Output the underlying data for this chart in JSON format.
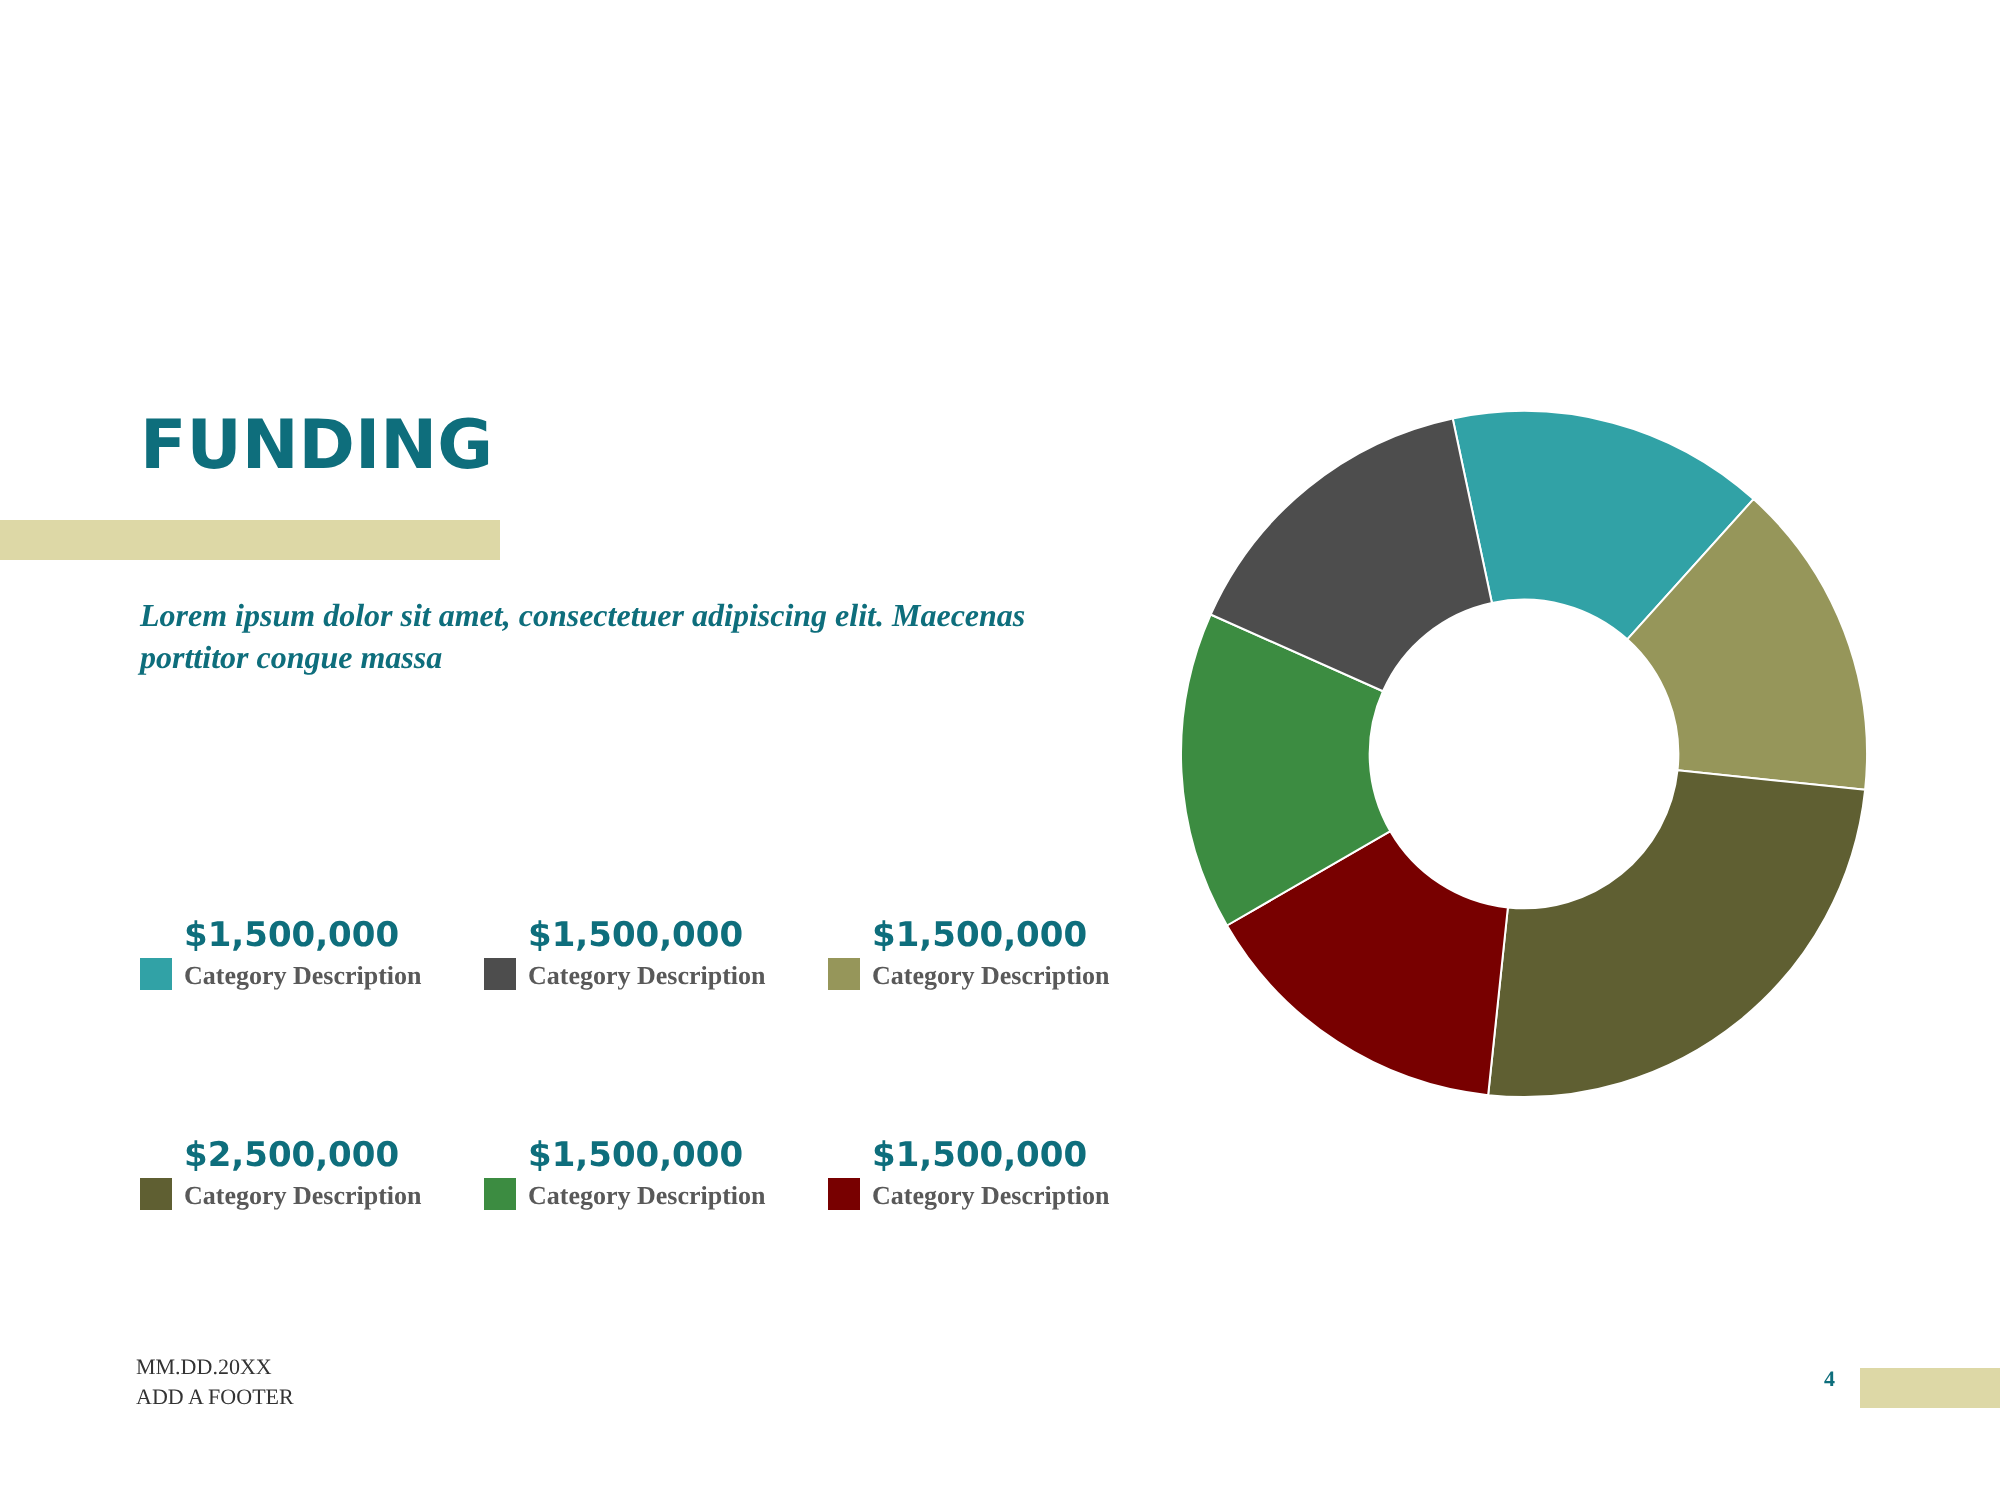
{
  "chart_data": {
    "type": "donut",
    "title": "FUNDING",
    "subtitle": "Lorem ipsum dolor sit amet, consectetuer adipiscing elit. Maecenas porttitor congue massa",
    "categories": [
      "Category Description",
      "Category Description",
      "Category Description",
      "Category Description",
      "Category Description",
      "Category Description"
    ],
    "values": [
      1500000,
      1500000,
      2500000,
      1500000,
      1500000,
      1500000
    ],
    "value_labels": [
      "$1,500,000",
      "$1,500,000",
      "$2,500,000",
      "$1,500,000",
      "$1,500,000",
      "$1,500,000"
    ],
    "colors": [
      "#31a2a6",
      "#96965a",
      "#5f5f32",
      "#780000",
      "#3c8c41",
      "#4d4d4d"
    ],
    "legend": "left",
    "annotations": [
      "MM.DD.20XX",
      "ADD A FOOTER",
      "4"
    ]
  }
}
